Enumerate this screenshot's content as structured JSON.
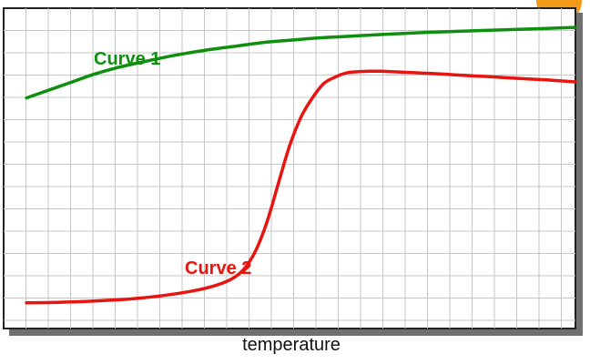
{
  "chart_data": {
    "type": "line",
    "title": "",
    "xlabel": "temperature",
    "ylabel": "",
    "xlim": [
      0,
      100
    ],
    "ylim": [
      0,
      100
    ],
    "grid": true,
    "legend": "none",
    "series": [
      {
        "name": "Curve 1",
        "color": "#0e8f0e",
        "x": [
          4,
          8,
          12,
          16,
          20,
          25,
          30,
          35,
          40,
          45,
          50,
          55,
          60,
          65,
          70,
          75,
          80,
          85,
          90,
          95,
          100
        ],
        "y": [
          72,
          74.5,
          77,
          79.5,
          81.5,
          83.5,
          85.3,
          86.8,
          88,
          89.2,
          90,
          90.7,
          91.2,
          91.7,
          92.1,
          92.5,
          92.8,
          93.1,
          93.4,
          93.7,
          94
        ]
      },
      {
        "name": "Curve 2",
        "color": "#e8140f",
        "x": [
          4,
          10,
          16,
          22,
          28,
          33,
          37,
          40,
          42,
          44,
          46,
          48,
          50,
          52,
          54,
          56,
          58,
          60,
          62,
          64,
          66,
          70,
          75,
          80,
          85,
          90,
          95,
          100
        ],
        "y": [
          8,
          8.2,
          8.6,
          9.2,
          10.3,
          11.7,
          13.4,
          15.6,
          18.5,
          24,
          33,
          45,
          57,
          66,
          72,
          76.5,
          78.5,
          79.8,
          80.2,
          80.3,
          80.3,
          80,
          79.6,
          79.1,
          78.6,
          78.1,
          77.6,
          77
        ]
      }
    ],
    "annotations": [
      {
        "text": "Curve 1",
        "color": "#0e8f0e"
      },
      {
        "text": "Curve 2",
        "color": "#e8140f"
      }
    ]
  }
}
